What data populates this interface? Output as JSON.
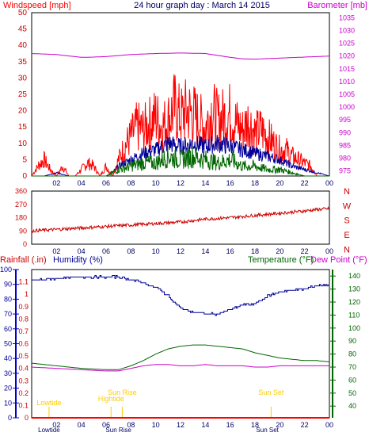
{
  "header": {
    "left_title": "Windspeed [mph]",
    "center_title": "24 hour graph day : March 14 2015",
    "right_title": "Barometer [mb]"
  },
  "colors": {
    "red": "#ff0000",
    "magenta": "#cc00cc",
    "blue": "#000099",
    "green": "#006600",
    "yellow": "#ffcc00",
    "grid": "#c0c0c0"
  },
  "chart_data": [
    {
      "name": "wind-barometer",
      "type": "line",
      "x_ticks": [
        "02",
        "04",
        "06",
        "08",
        "10",
        "12",
        "14",
        "16",
        "18",
        "20",
        "22",
        "00"
      ],
      "y_left_ticks": [
        "0",
        "5",
        "10",
        "15",
        "20",
        "25",
        "30",
        "35",
        "40",
        "45",
        "50"
      ],
      "y_left_range": [
        0,
        50
      ],
      "y_right_ticks": [
        "975",
        "980",
        "985",
        "990",
        "995",
        "1000",
        "1005",
        "1010",
        "1015",
        "1020",
        "1025",
        "1030",
        "1035"
      ],
      "y_right_range": [
        973,
        1037
      ],
      "series": [
        {
          "key": "barometer",
          "axis": "right",
          "color": "#cc00cc",
          "x": [
            0,
            2,
            4,
            5,
            6,
            8,
            10,
            12,
            14,
            16,
            17,
            18,
            20,
            22,
            24
          ],
          "y": [
            1021,
            1020.6,
            1019.5,
            1019.6,
            1019.8,
            1020.6,
            1021,
            1021.2,
            1021,
            1019.5,
            1018.9,
            1018.8,
            1019.2,
            1019.6,
            1020
          ]
        },
        {
          "key": "gust",
          "axis": "left",
          "color": "#ff0000",
          "x": [
            0,
            0.5,
            1,
            1.5,
            2,
            2.5,
            3,
            3.5,
            4,
            4.5,
            5,
            5.5,
            6,
            6.5,
            7,
            7.5,
            8,
            8.5,
            9,
            9.5,
            10,
            10.5,
            11,
            11.5,
            12,
            12.5,
            13,
            13.5,
            14,
            14.5,
            15,
            15.5,
            16,
            16.5,
            17,
            17.5,
            18,
            18.5,
            19,
            19.5,
            20,
            20.5,
            21,
            21.5,
            22,
            22.5,
            23,
            23.5,
            24
          ],
          "y": [
            0,
            3,
            5,
            2,
            0,
            3,
            0,
            0,
            2,
            4,
            3,
            0,
            3,
            0,
            5,
            9,
            12,
            15,
            14,
            16,
            18,
            15,
            17,
            21,
            18,
            20,
            19,
            17,
            15,
            20,
            17,
            18,
            19,
            16,
            14,
            17,
            13,
            14,
            12,
            10,
            8,
            8,
            6,
            5,
            4,
            3,
            0,
            0,
            0
          ]
        },
        {
          "key": "average",
          "axis": "left",
          "color": "#000099",
          "x": [
            0,
            1,
            2,
            3,
            4,
            5,
            6,
            6.5,
            7,
            8,
            9,
            10,
            11,
            12,
            13,
            14,
            15,
            16,
            17,
            18,
            19,
            20,
            21,
            22,
            23,
            24
          ],
          "y": [
            0,
            0,
            1,
            0,
            0,
            0,
            0,
            1,
            3,
            5,
            7,
            8,
            10,
            9,
            10,
            9,
            10,
            9,
            8,
            7,
            6,
            5,
            3,
            2,
            1,
            0
          ]
        },
        {
          "key": "minimum",
          "axis": "left",
          "color": "#006600",
          "x": [
            0,
            6,
            6.5,
            7,
            8,
            9,
            10,
            11,
            12,
            13,
            14,
            15,
            16,
            17,
            18,
            19,
            20,
            21,
            22,
            23,
            24
          ],
          "y": [
            0,
            0,
            1,
            2,
            3,
            4,
            4,
            6,
            5,
            6,
            5,
            4,
            5,
            3,
            3,
            2,
            2,
            1,
            0,
            0,
            0
          ]
        }
      ]
    },
    {
      "name": "wind-direction",
      "type": "line",
      "x_ticks": [
        "02",
        "04",
        "06",
        "08",
        "10",
        "12",
        "14",
        "16",
        "18",
        "20",
        "22",
        "00"
      ],
      "y_ticks": [
        "360",
        "270",
        "180",
        "90",
        "0"
      ],
      "y_range": [
        0,
        360
      ],
      "compass_labels": [
        "N",
        "W",
        "S",
        "E",
        "N"
      ],
      "series": [
        {
          "key": "direction",
          "color": "#cc0000",
          "x": [
            0,
            2,
            4,
            6,
            8,
            10,
            12,
            14,
            16,
            18,
            20,
            22,
            23,
            24
          ],
          "y": [
            90,
            100,
            110,
            120,
            130,
            140,
            150,
            170,
            180,
            195,
            210,
            225,
            235,
            240
          ]
        }
      ]
    },
    {
      "name": "rain-humidity-temperature",
      "type": "line",
      "labels": {
        "rainfall": "Rainfall (.in)",
        "humidity": "Humidity (%)",
        "temperature": "Temperature (°F)",
        "dewpoint": "Dew Point (°F)"
      },
      "x_ticks": [
        "02",
        "04",
        "06",
        "08",
        "10",
        "12",
        "14",
        "16",
        "18",
        "20",
        "22",
        "00"
      ],
      "y_rain_ticks": [
        "0",
        "0.1",
        "0.2",
        "0.3",
        "0.4",
        "0.5",
        "0.6",
        "0.7",
        "0.8",
        "0.9",
        "1",
        "1.1"
      ],
      "y_rain_range": [
        0,
        1.2
      ],
      "y_humidity_ticks": [
        "0",
        "10",
        "20",
        "30",
        "40",
        "50",
        "60",
        "70",
        "80",
        "90",
        "100"
      ],
      "y_humidity_range": [
        0,
        100
      ],
      "y_temp_ticks": [
        "40",
        "50",
        "60",
        "70",
        "80",
        "90",
        "100",
        "110",
        "120",
        "130",
        "140"
      ],
      "y_temp_range": [
        31,
        145
      ],
      "series": [
        {
          "key": "humidity",
          "axis": "humidity",
          "color": "#000099",
          "x": [
            0,
            2,
            4,
            6,
            7,
            8,
            9,
            10,
            11,
            12,
            13,
            14,
            15,
            16,
            17,
            18,
            19,
            20,
            21,
            22,
            23,
            24
          ],
          "y": [
            93,
            94,
            95,
            95,
            95,
            93,
            91,
            88,
            82,
            74,
            71,
            70,
            70,
            73,
            76,
            77,
            82,
            85,
            86,
            87,
            89,
            90
          ]
        },
        {
          "key": "temperature",
          "axis": "temp",
          "color": "#006600",
          "x": [
            0,
            2,
            4,
            6,
            7,
            8,
            9,
            10,
            11,
            12,
            13,
            14,
            15,
            16,
            17,
            18,
            19,
            20,
            21,
            22,
            23,
            24
          ],
          "y": [
            73,
            71,
            69,
            68,
            68,
            71,
            75,
            80,
            84,
            86,
            87,
            87,
            86,
            85,
            84,
            81,
            79,
            77,
            76,
            75,
            75,
            74
          ]
        },
        {
          "key": "dewpoint",
          "axis": "temp",
          "color": "#cc00cc",
          "x": [
            0,
            2,
            4,
            6,
            7,
            8,
            9,
            10,
            11,
            12,
            13,
            14,
            15,
            16,
            17,
            18,
            19,
            20,
            21,
            22,
            23,
            24
          ],
          "y": [
            70,
            69,
            68,
            67,
            67,
            69,
            71,
            72,
            72,
            71,
            71,
            72,
            71,
            71,
            71,
            70,
            70,
            71,
            71,
            71,
            71,
            71
          ]
        },
        {
          "key": "rain",
          "axis": "rain",
          "color": "#ff0000",
          "x": [
            0,
            24
          ],
          "y": [
            0,
            0
          ]
        }
      ],
      "markers": [
        {
          "label": "Lowtide",
          "x": 1.4
        },
        {
          "label": "Hightide",
          "x": 6.4
        },
        {
          "label": "Sun Rise",
          "x": 7.3
        },
        {
          "label": "Sun Set",
          "x": 19.3
        }
      ],
      "bottom_labels": [
        {
          "label": "Lowtide",
          "x": 1.4
        },
        {
          "label": "Sun Rise",
          "x": 7.0
        },
        {
          "label": "Sun Set",
          "x": 19.0
        }
      ]
    }
  ]
}
